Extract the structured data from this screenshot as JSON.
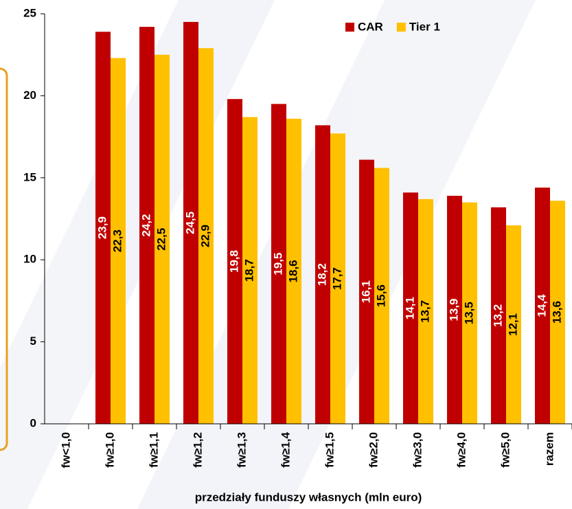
{
  "chart_data": {
    "type": "bar",
    "x_label": "przedziały funduszy własnych (mln euro)",
    "categories": [
      "fw<1,0",
      "fw≥1,0",
      "fw≥1,1",
      "fw≥1,2",
      "fw≥1,3",
      "fw≥1,4",
      "fw≥1,5",
      "fw≥2,0",
      "fw≥3,0",
      "fw≥4,0",
      "fw≥5,0",
      "razem"
    ],
    "series": [
      {
        "name": "CAR",
        "color": "#c00000",
        "values": [
          null,
          23.9,
          24.2,
          24.5,
          19.8,
          19.5,
          18.2,
          16.1,
          14.1,
          13.9,
          13.2,
          14.4
        ],
        "value_labels": [
          null,
          "23,9",
          "24,2",
          "24,5",
          "19,8",
          "19,5",
          "18,2",
          "16,1",
          "14,1",
          "13,9",
          "13,2",
          "14,4"
        ]
      },
      {
        "name": "Tier 1",
        "color": "#ffc000",
        "values": [
          null,
          22.3,
          22.5,
          22.9,
          18.7,
          18.6,
          17.7,
          15.6,
          13.7,
          13.5,
          12.1,
          13.6
        ],
        "value_labels": [
          null,
          "22,3",
          "22,5",
          "22,9",
          "18,7",
          "18,6",
          "17,7",
          "15,6",
          "13,7",
          "13,5",
          "12,1",
          "13,6"
        ]
      }
    ],
    "ylim": [
      0,
      25
    ],
    "yticks": [
      0,
      5,
      10,
      15,
      20,
      25
    ],
    "legend": "top-right"
  }
}
